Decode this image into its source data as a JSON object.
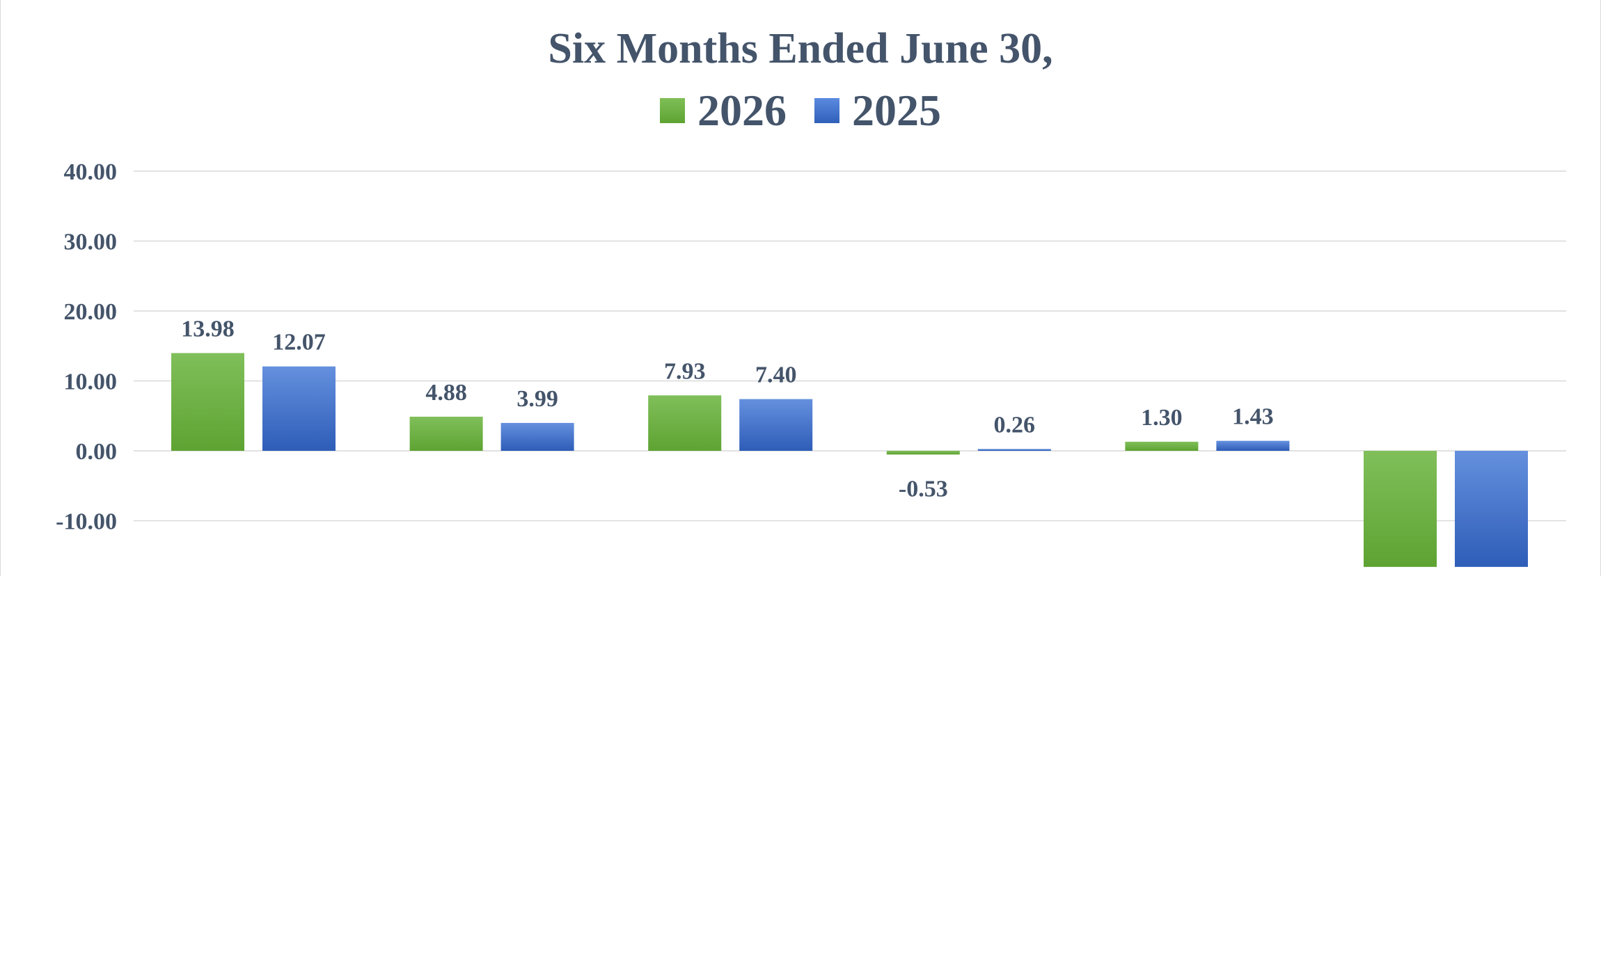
{
  "chart_data": {
    "type": "bar",
    "title": "Six Months Ended June 30,",
    "categories": [
      "",
      "",
      "",
      "",
      "",
      ""
    ],
    "series": [
      {
        "name": "2026",
        "color": "#70ad47",
        "values": [
          13.98,
          4.88,
          7.93,
          -0.53,
          1.3,
          -16.6
        ],
        "labels": [
          "13.98",
          "4.88",
          "7.93",
          "-0.53",
          "1.30",
          ""
        ]
      },
      {
        "name": "2025",
        "color": "#4472c4",
        "values": [
          12.07,
          3.99,
          7.4,
          0.26,
          1.43,
          -16.6
        ],
        "labels": [
          "12.07",
          "3.99",
          "7.40",
          "0.26",
          "1.43",
          ""
        ]
      }
    ],
    "y_ticks": [
      "40.00",
      "30.00",
      "20.00",
      "10.00",
      "0.00",
      "-10.00"
    ],
    "ylim": [
      -16.6,
      40
    ],
    "grid": true,
    "legend_position": "top"
  }
}
